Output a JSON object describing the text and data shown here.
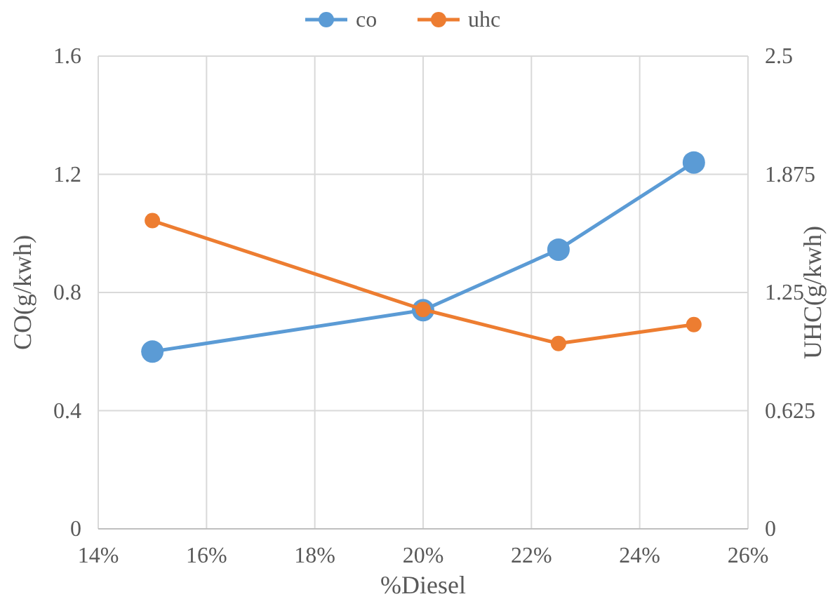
{
  "chart_data": {
    "type": "line",
    "x": [
      15,
      20,
      22.5,
      25
    ],
    "series": [
      {
        "name": "co",
        "color": "#5b9bd5",
        "values": [
          0.6,
          0.74,
          0.945,
          1.24
        ]
      },
      {
        "name": "uhc",
        "color": "#ed7d31",
        "values": [
          1.63,
          1.16,
          0.98,
          1.08
        ],
        "axis": "y2"
      }
    ],
    "xlabel": "%Diesel",
    "ylabel": "CO(g/kwh)",
    "y2label": "UHC(g/kwh)",
    "xlim": [
      14,
      26
    ],
    "xticks": [
      {
        "value": 14,
        "label": "14%"
      },
      {
        "value": 16,
        "label": "16%"
      },
      {
        "value": 18,
        "label": "18%"
      },
      {
        "value": 20,
        "label": "20%"
      },
      {
        "value": 22,
        "label": "22%"
      },
      {
        "value": 24,
        "label": "24%"
      },
      {
        "value": 26,
        "label": "26%"
      }
    ],
    "ylim": [
      0,
      1.6
    ],
    "yticks": [
      0,
      0.4,
      0.8,
      1.2,
      1.6
    ],
    "y2lim": [
      0,
      2.5
    ],
    "y2ticks": [
      0,
      0.625,
      1.25,
      1.875,
      2.5
    ],
    "grid": true,
    "legend": "top",
    "marker": "circle",
    "line_style": "solid"
  }
}
